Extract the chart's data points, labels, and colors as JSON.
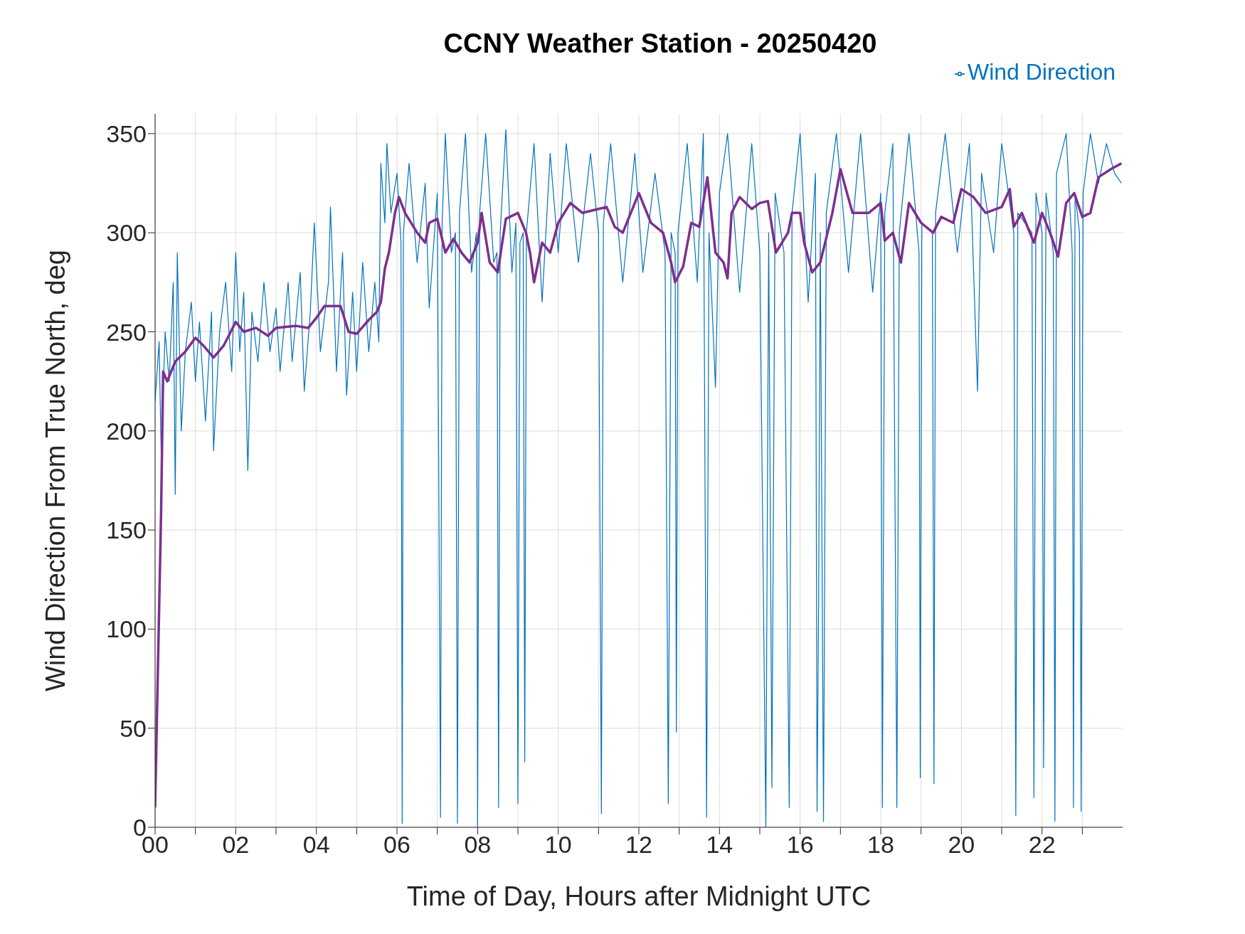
{
  "chart_data": {
    "type": "line",
    "title": "CCNY Weather Station - 20250420",
    "xlabel": "Time of Day, Hours after Midnight UTC",
    "ylabel": "Wind Direction From True North, deg",
    "xlim": [
      0,
      24
    ],
    "xticks": [
      {
        "value": 0,
        "label": "00"
      },
      {
        "value": 1,
        "label": null
      },
      {
        "value": 2,
        "label": "02"
      },
      {
        "value": 3,
        "label": null
      },
      {
        "value": 4,
        "label": "04"
      },
      {
        "value": 5,
        "label": null
      },
      {
        "value": 6,
        "label": "06"
      },
      {
        "value": 7,
        "label": null
      },
      {
        "value": 8,
        "label": "08"
      },
      {
        "value": 9,
        "label": null
      },
      {
        "value": 10,
        "label": "10"
      },
      {
        "value": 11,
        "label": null
      },
      {
        "value": 12,
        "label": "12"
      },
      {
        "value": 13,
        "label": null
      },
      {
        "value": 14,
        "label": "14"
      },
      {
        "value": 15,
        "label": null
      },
      {
        "value": 16,
        "label": "16"
      },
      {
        "value": 17,
        "label": null
      },
      {
        "value": 18,
        "label": "18"
      },
      {
        "value": 19,
        "label": null
      },
      {
        "value": 20,
        "label": "20"
      },
      {
        "value": 21,
        "label": null
      },
      {
        "value": 22,
        "label": "22"
      },
      {
        "value": 23,
        "label": null
      }
    ],
    "ylim": [
      0,
      360
    ],
    "yticks": [
      0,
      50,
      100,
      150,
      200,
      250,
      300,
      350
    ],
    "grid": true,
    "legend": "top right",
    "marker": "none",
    "line_style": "solid",
    "series": [
      {
        "name": "Wind Direction",
        "color": "#0072bd",
        "x": [
          0,
          0.1,
          0.15,
          0.25,
          0.35,
          0.45,
          0.5,
          0.55,
          0.65,
          0.75,
          0.9,
          1.0,
          1.1,
          1.25,
          1.4,
          1.45,
          1.6,
          1.75,
          1.9,
          2.0,
          2.1,
          2.2,
          2.3,
          2.4,
          2.55,
          2.7,
          2.85,
          3.0,
          3.1,
          3.3,
          3.4,
          3.6,
          3.7,
          3.85,
          3.95,
          4.1,
          4.3,
          4.35,
          4.5,
          4.65,
          4.75,
          4.9,
          5.0,
          5.15,
          5.3,
          5.45,
          5.55,
          5.6,
          5.7,
          5.75,
          5.85,
          6.0,
          6.1,
          6.13,
          6.16,
          6.3,
          6.5,
          6.7,
          6.8,
          7.0,
          7.08,
          7.12,
          7.2,
          7.35,
          7.45,
          7.5,
          7.55,
          7.7,
          7.85,
          7.97,
          8.0,
          8.05,
          8.2,
          8.4,
          8.48,
          8.52,
          8.56,
          8.7,
          8.85,
          8.95,
          9.0,
          9.05,
          9.13,
          9.17,
          9.21,
          9.4,
          9.6,
          9.8,
          10.0,
          10.2,
          10.5,
          10.8,
          11.0,
          11.07,
          11.12,
          11.3,
          11.6,
          11.9,
          12.1,
          12.4,
          12.65,
          12.73,
          12.8,
          12.9,
          12.93,
          12.97,
          13.2,
          13.45,
          13.6,
          13.68,
          13.74,
          13.9,
          14.0,
          14.2,
          14.5,
          14.8,
          15.0,
          15.15,
          15.22,
          15.3,
          15.38,
          15.6,
          15.73,
          15.8,
          16.0,
          16.2,
          16.38,
          16.42,
          16.46,
          16.5,
          16.58,
          16.65,
          16.9,
          17.2,
          17.5,
          17.8,
          18.0,
          18.04,
          18.1,
          18.3,
          18.4,
          18.46,
          18.7,
          18.95,
          18.98,
          19.02,
          19.28,
          19.32,
          19.36,
          19.6,
          19.9,
          20.2,
          20.4,
          20.5,
          20.8,
          21.0,
          21.3,
          21.35,
          21.4,
          21.75,
          21.8,
          21.85,
          22.0,
          22.04,
          22.1,
          22.28,
          22.32,
          22.36,
          22.6,
          22.75,
          22.78,
          22.82,
          22.93,
          22.97,
          23.02,
          23.2,
          23.4,
          23.6,
          23.8,
          23.97
        ],
        "values": [
          215,
          245,
          190,
          250,
          225,
          275,
          168,
          290,
          200,
          240,
          265,
          225,
          255,
          205,
          260,
          190,
          250,
          275,
          230,
          290,
          240,
          270,
          180,
          260,
          235,
          275,
          240,
          262,
          230,
          275,
          235,
          280,
          220,
          260,
          305,
          240,
          275,
          313,
          230,
          290,
          218,
          270,
          230,
          285,
          240,
          275,
          245,
          335,
          305,
          345,
          310,
          330,
          295,
          2,
          300,
          335,
          285,
          325,
          262,
          320,
          5,
          305,
          350,
          290,
          300,
          2,
          310,
          350,
          280,
          300,
          0,
          310,
          350,
          285,
          290,
          10,
          300,
          352,
          280,
          305,
          12,
          295,
          300,
          33,
          300,
          345,
          265,
          340,
          290,
          345,
          285,
          340,
          300,
          7,
          305,
          345,
          275,
          340,
          280,
          330,
          290,
          12,
          300,
          290,
          48,
          300,
          345,
          275,
          350,
          5,
          300,
          222,
          320,
          350,
          270,
          345,
          290,
          0,
          300,
          20,
          320,
          290,
          10,
          310,
          350,
          265,
          330,
          8,
          117,
          300,
          3,
          310,
          350,
          280,
          350,
          270,
          320,
          10,
          310,
          345,
          10,
          300,
          350,
          290,
          25,
          305,
          300,
          22,
          310,
          350,
          290,
          345,
          220,
          330,
          290,
          345,
          300,
          6,
          310,
          300,
          15,
          320,
          300,
          30,
          320,
          290,
          3,
          330,
          350,
          290,
          10,
          320,
          300,
          8,
          320,
          350,
          325,
          345,
          330,
          325
        ]
      },
      {
        "color": "#7e2f8e",
        "x": [
          0,
          0.05,
          0.15,
          0.2,
          0.3,
          0.5,
          0.75,
          1.0,
          1.2,
          1.45,
          1.7,
          2.0,
          2.2,
          2.5,
          2.8,
          3.0,
          3.5,
          3.8,
          4.0,
          4.2,
          4.6,
          4.8,
          5.0,
          5.3,
          5.5,
          5.6,
          5.7,
          5.8,
          5.95,
          6.05,
          6.2,
          6.5,
          6.7,
          6.8,
          7.0,
          7.2,
          7.4,
          7.6,
          7.8,
          8.0,
          8.1,
          8.3,
          8.5,
          8.7,
          9.0,
          9.2,
          9.3,
          9.4,
          9.6,
          9.8,
          10.0,
          10.3,
          10.6,
          11.0,
          11.2,
          11.4,
          11.6,
          11.8,
          12.0,
          12.3,
          12.6,
          12.8,
          12.9,
          13.1,
          13.3,
          13.5,
          13.7,
          13.9,
          14.1,
          14.2,
          14.3,
          14.5,
          14.8,
          15.0,
          15.2,
          15.4,
          15.7,
          15.8,
          16.0,
          16.1,
          16.3,
          16.5,
          16.8,
          17.0,
          17.3,
          17.7,
          18.0,
          18.1,
          18.3,
          18.5,
          18.7,
          19.0,
          19.3,
          19.5,
          19.8,
          20.0,
          20.3,
          20.6,
          21.0,
          21.2,
          21.3,
          21.5,
          21.8,
          22.0,
          22.2,
          22.4,
          22.6,
          22.8,
          23.0,
          23.2,
          23.4,
          23.7,
          23.97
        ],
        "values": [
          10,
          60,
          160,
          230,
          225,
          235,
          240,
          247,
          243,
          237,
          243,
          255,
          250,
          252,
          248,
          252,
          253,
          252,
          257,
          263,
          263,
          250,
          249,
          256,
          260,
          265,
          282,
          290,
          310,
          318,
          310,
          300,
          295,
          305,
          307,
          290,
          297,
          290,
          285,
          295,
          310,
          285,
          280,
          307,
          310,
          300,
          290,
          275,
          295,
          290,
          305,
          315,
          310,
          312,
          313,
          303,
          300,
          310,
          320,
          305,
          300,
          285,
          275,
          283,
          305,
          303,
          328,
          290,
          285,
          277,
          310,
          318,
          312,
          315,
          316,
          290,
          300,
          310,
          310,
          295,
          280,
          285,
          310,
          332,
          310,
          310,
          315,
          296,
          300,
          285,
          315,
          305,
          300,
          308,
          305,
          322,
          318,
          310,
          313,
          322,
          303,
          310,
          295,
          310,
          300,
          288,
          315,
          320,
          308,
          310,
          328,
          332,
          335
        ]
      }
    ]
  }
}
